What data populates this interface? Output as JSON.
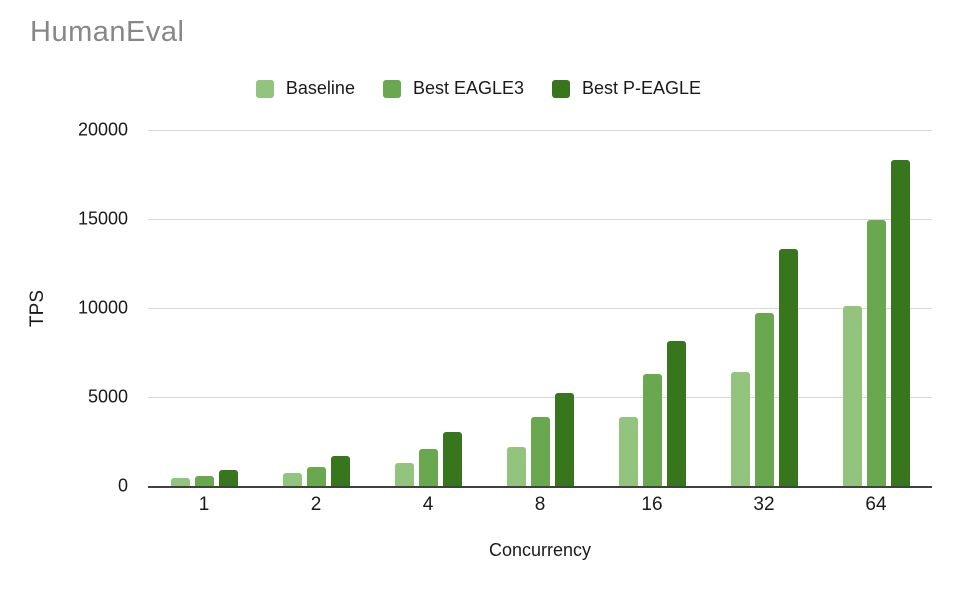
{
  "chart_data": {
    "type": "bar",
    "title": "HumanEval",
    "xlabel": "Concurrency",
    "ylabel": "TPS",
    "categories": [
      "1",
      "2",
      "4",
      "8",
      "16",
      "32",
      "64"
    ],
    "series": [
      {
        "name": "Baseline",
        "color": "#93c47d",
        "values": [
          430,
          730,
          1270,
          2210,
          3860,
          6430,
          10100
        ]
      },
      {
        "name": "Best EAGLE3",
        "color": "#6aa84f",
        "values": [
          550,
          1070,
          2070,
          3860,
          6300,
          9700,
          14950
        ]
      },
      {
        "name": "Best P-EAGLE",
        "color": "#38761d",
        "values": [
          920,
          1690,
          3010,
          5250,
          8150,
          13300,
          18300
        ]
      }
    ],
    "ylim": [
      0,
      20000
    ],
    "yticks": [
      0,
      5000,
      10000,
      15000,
      20000
    ],
    "grid": true,
    "legend_position": "top"
  },
  "colors": {
    "background": "#ffffff",
    "title_text": "#878787",
    "axis_text": "#1a1a1a",
    "gridline": "#d9d9d9",
    "axis_line": "#404040"
  }
}
